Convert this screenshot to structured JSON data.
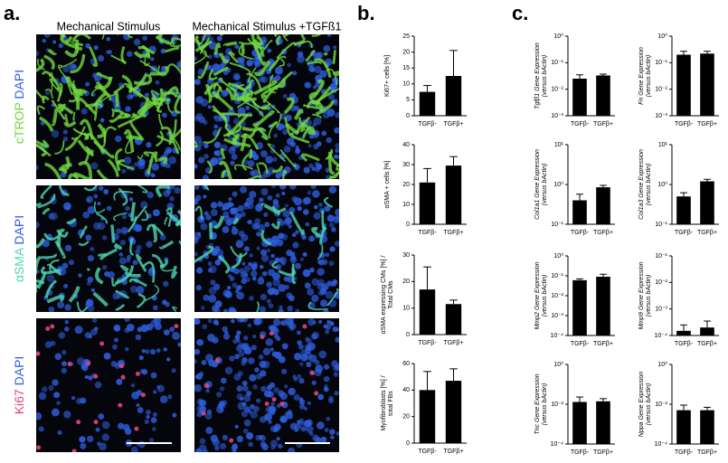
{
  "figure": {
    "panel_a": {
      "label": "a.",
      "columns": [
        "Mechanical Stimulus",
        "Mechanical Stimulus +TGFß1"
      ],
      "rows": [
        {
          "stain": "cTROP",
          "counterstain": "DAPI",
          "stain_color": "#6fd93e"
        },
        {
          "stain": "αSMA",
          "counterstain": "DAPI",
          "stain_color": "#4fd6b0"
        },
        {
          "stain": "Ki67",
          "counterstain": "DAPI",
          "stain_color": "#e0457a"
        }
      ],
      "counterstain_color": "#2f5fe0"
    },
    "panel_b": {
      "label": "b."
    },
    "panel_c": {
      "label": "c."
    }
  },
  "chart_data": [
    {
      "type": "bar",
      "ylabel": [
        "Ki67+ cells [%]"
      ],
      "categories": [
        "TGFβ-",
        "TGFβ+"
      ],
      "values": [
        7.5,
        12.5
      ],
      "errors": [
        2,
        8
      ],
      "color": "#000000",
      "ylim": [
        0,
        25
      ],
      "yticks": [
        0,
        5,
        10,
        15,
        20,
        25
      ],
      "log": false
    },
    {
      "type": "bar",
      "ylabel": [
        "αSMA + cells [%]"
      ],
      "categories": [
        "TGFβ-",
        "TGFβ+"
      ],
      "values": [
        21,
        29.5
      ],
      "errors": [
        7,
        4.5
      ],
      "color": "#000000",
      "ylim": [
        0,
        40
      ],
      "yticks": [
        0,
        10,
        20,
        30,
        40
      ],
      "log": false
    },
    {
      "type": "bar",
      "ylabel": [
        "αSMA expressing CMs [%] /",
        "Total CMs"
      ],
      "categories": [
        "TGFβ-",
        "TGFβ+"
      ],
      "values": [
        17,
        11.5
      ],
      "errors": [
        8.5,
        1.5
      ],
      "color": "#000000",
      "ylim": [
        0,
        30
      ],
      "yticks": [
        0,
        10,
        20,
        30
      ],
      "log": false
    },
    {
      "type": "bar",
      "ylabel": [
        "Myofibroblasts [%] /",
        "total FBs"
      ],
      "categories": [
        "TGFβ-",
        "TGFβ+"
      ],
      "values": [
        40,
        47
      ],
      "errors": [
        14,
        9
      ],
      "color": "#000000",
      "ylim": [
        0,
        60
      ],
      "yticks": [
        0,
        20,
        40,
        60
      ],
      "log": false
    },
    {
      "type": "bar",
      "ylabel": [
        "Tgfβ1 Gene Expression",
        "(versus bActin)"
      ],
      "categories": [
        "TGFβ-",
        "TGFβ+"
      ],
      "values": [
        0.025,
        0.033
      ],
      "errors": [
        0.01,
        0.004
      ],
      "color": "#000000",
      "ylim": [
        0.001,
        1
      ],
      "log": true,
      "yticks": [
        {
          "value": 0.001,
          "label": "10⁻³"
        },
        {
          "value": 0.01,
          "label": "10⁻²"
        },
        {
          "value": 0.1,
          "label": "10⁻¹"
        },
        {
          "value": 1,
          "label": "10⁰"
        }
      ]
    },
    {
      "type": "bar",
      "ylabel": [
        "Fn Gene Expression",
        "(versus bActin)"
      ],
      "categories": [
        "TGFβ-",
        "TGFβ+"
      ],
      "values": [
        0.2,
        0.22
      ],
      "errors": [
        0.07,
        0.05
      ],
      "color": "#000000",
      "ylim": [
        0.001,
        1
      ],
      "log": true,
      "yticks": [
        {
          "value": 0.001,
          "label": "10⁻³"
        },
        {
          "value": 0.01,
          "label": "10⁻²"
        },
        {
          "value": 0.1,
          "label": "10⁻¹"
        },
        {
          "value": 1,
          "label": "10⁰"
        }
      ]
    },
    {
      "type": "bar",
      "ylabel": [
        "Col1a1 Gene Expression",
        "(versus bActin)"
      ],
      "categories": [
        "TGFβ-",
        "TGFβ+"
      ],
      "values": [
        0.4,
        0.85
      ],
      "errors": [
        0.17,
        0.1
      ],
      "color": "#000000",
      "ylim": [
        0.1,
        10
      ],
      "log": true,
      "yticks": [
        {
          "value": 0.1,
          "label": "10⁻¹"
        },
        {
          "value": 1,
          "label": "10⁰"
        },
        {
          "value": 10,
          "label": "10¹"
        }
      ]
    },
    {
      "type": "bar",
      "ylabel": [
        "Col1a3 Gene Expression",
        "(versus bActin)"
      ],
      "categories": [
        "TGFβ-",
        "TGFβ+"
      ],
      "values": [
        0.5,
        1.2
      ],
      "errors": [
        0.12,
        0.15
      ],
      "color": "#000000",
      "ylim": [
        0.1,
        10
      ],
      "log": true,
      "yticks": [
        {
          "value": 0.1,
          "label": "10⁻¹"
        },
        {
          "value": 1,
          "label": "10⁰"
        },
        {
          "value": 10,
          "label": "10¹"
        }
      ]
    },
    {
      "type": "bar",
      "ylabel": [
        "Mmp2 Gene Expression",
        "(versus bActin)"
      ],
      "categories": [
        "TGFβ-",
        "TGFβ+"
      ],
      "values": [
        0.06,
        0.09
      ],
      "errors": [
        0.01,
        0.03
      ],
      "color": "#000000",
      "ylim": [
        0.0001,
        1
      ],
      "log": true,
      "yticks": [
        {
          "value": 0.0001,
          "label": "10⁻⁴"
        },
        {
          "value": 0.001,
          "label": "10⁻³"
        },
        {
          "value": 0.01,
          "label": "10⁻²"
        },
        {
          "value": 0.1,
          "label": "10⁻¹"
        },
        {
          "value": 1,
          "label": "10⁰"
        }
      ]
    },
    {
      "type": "bar",
      "ylabel": [
        "Mmp9 Gene Expression",
        "(versus bActin)"
      ],
      "categories": [
        "TGFβ-",
        "TGFβ+"
      ],
      "values": [
        0.00015,
        0.0002
      ],
      "errors": [
        0.0001,
        0.00015
      ],
      "color": "#000000",
      "ylim": [
        0.0001,
        0.1
      ],
      "log": true,
      "yticks": [
        {
          "value": 0.0001,
          "label": "10⁻⁴"
        },
        {
          "value": 0.001,
          "label": "10⁻³"
        },
        {
          "value": 0.01,
          "label": "10⁻²"
        },
        {
          "value": 0.1,
          "label": "10⁻¹"
        }
      ]
    },
    {
      "type": "bar",
      "ylabel": [
        "Tnc Gene Expression",
        "(versus bActin)"
      ],
      "categories": [
        "TGFβ-",
        "TGFβ+"
      ],
      "values": [
        0.013,
        0.014
      ],
      "errors": [
        0.01,
        0.005
      ],
      "color": "#000000",
      "ylim": [
        0.0001,
        1
      ],
      "log": true,
      "yticks": [
        {
          "value": 0.0001,
          "label": "10⁻⁴"
        },
        {
          "value": 0.01,
          "label": "10⁻²"
        },
        {
          "value": 1,
          "label": "10⁰"
        }
      ]
    },
    {
      "type": "bar",
      "ylabel": [
        "Nppa Gene Expression",
        "(versus bActin)"
      ],
      "categories": [
        "TGFβ-",
        "TGFβ+"
      ],
      "values": [
        0.005,
        0.005
      ],
      "errors": [
        0.004,
        0.002
      ],
      "color": "#000000",
      "ylim": [
        0.0001,
        1
      ],
      "log": true,
      "yticks": [
        {
          "value": 0.0001,
          "label": "10⁻⁴"
        },
        {
          "value": 0.01,
          "label": "10⁻²"
        },
        {
          "value": 1,
          "label": "10⁰"
        }
      ]
    }
  ]
}
